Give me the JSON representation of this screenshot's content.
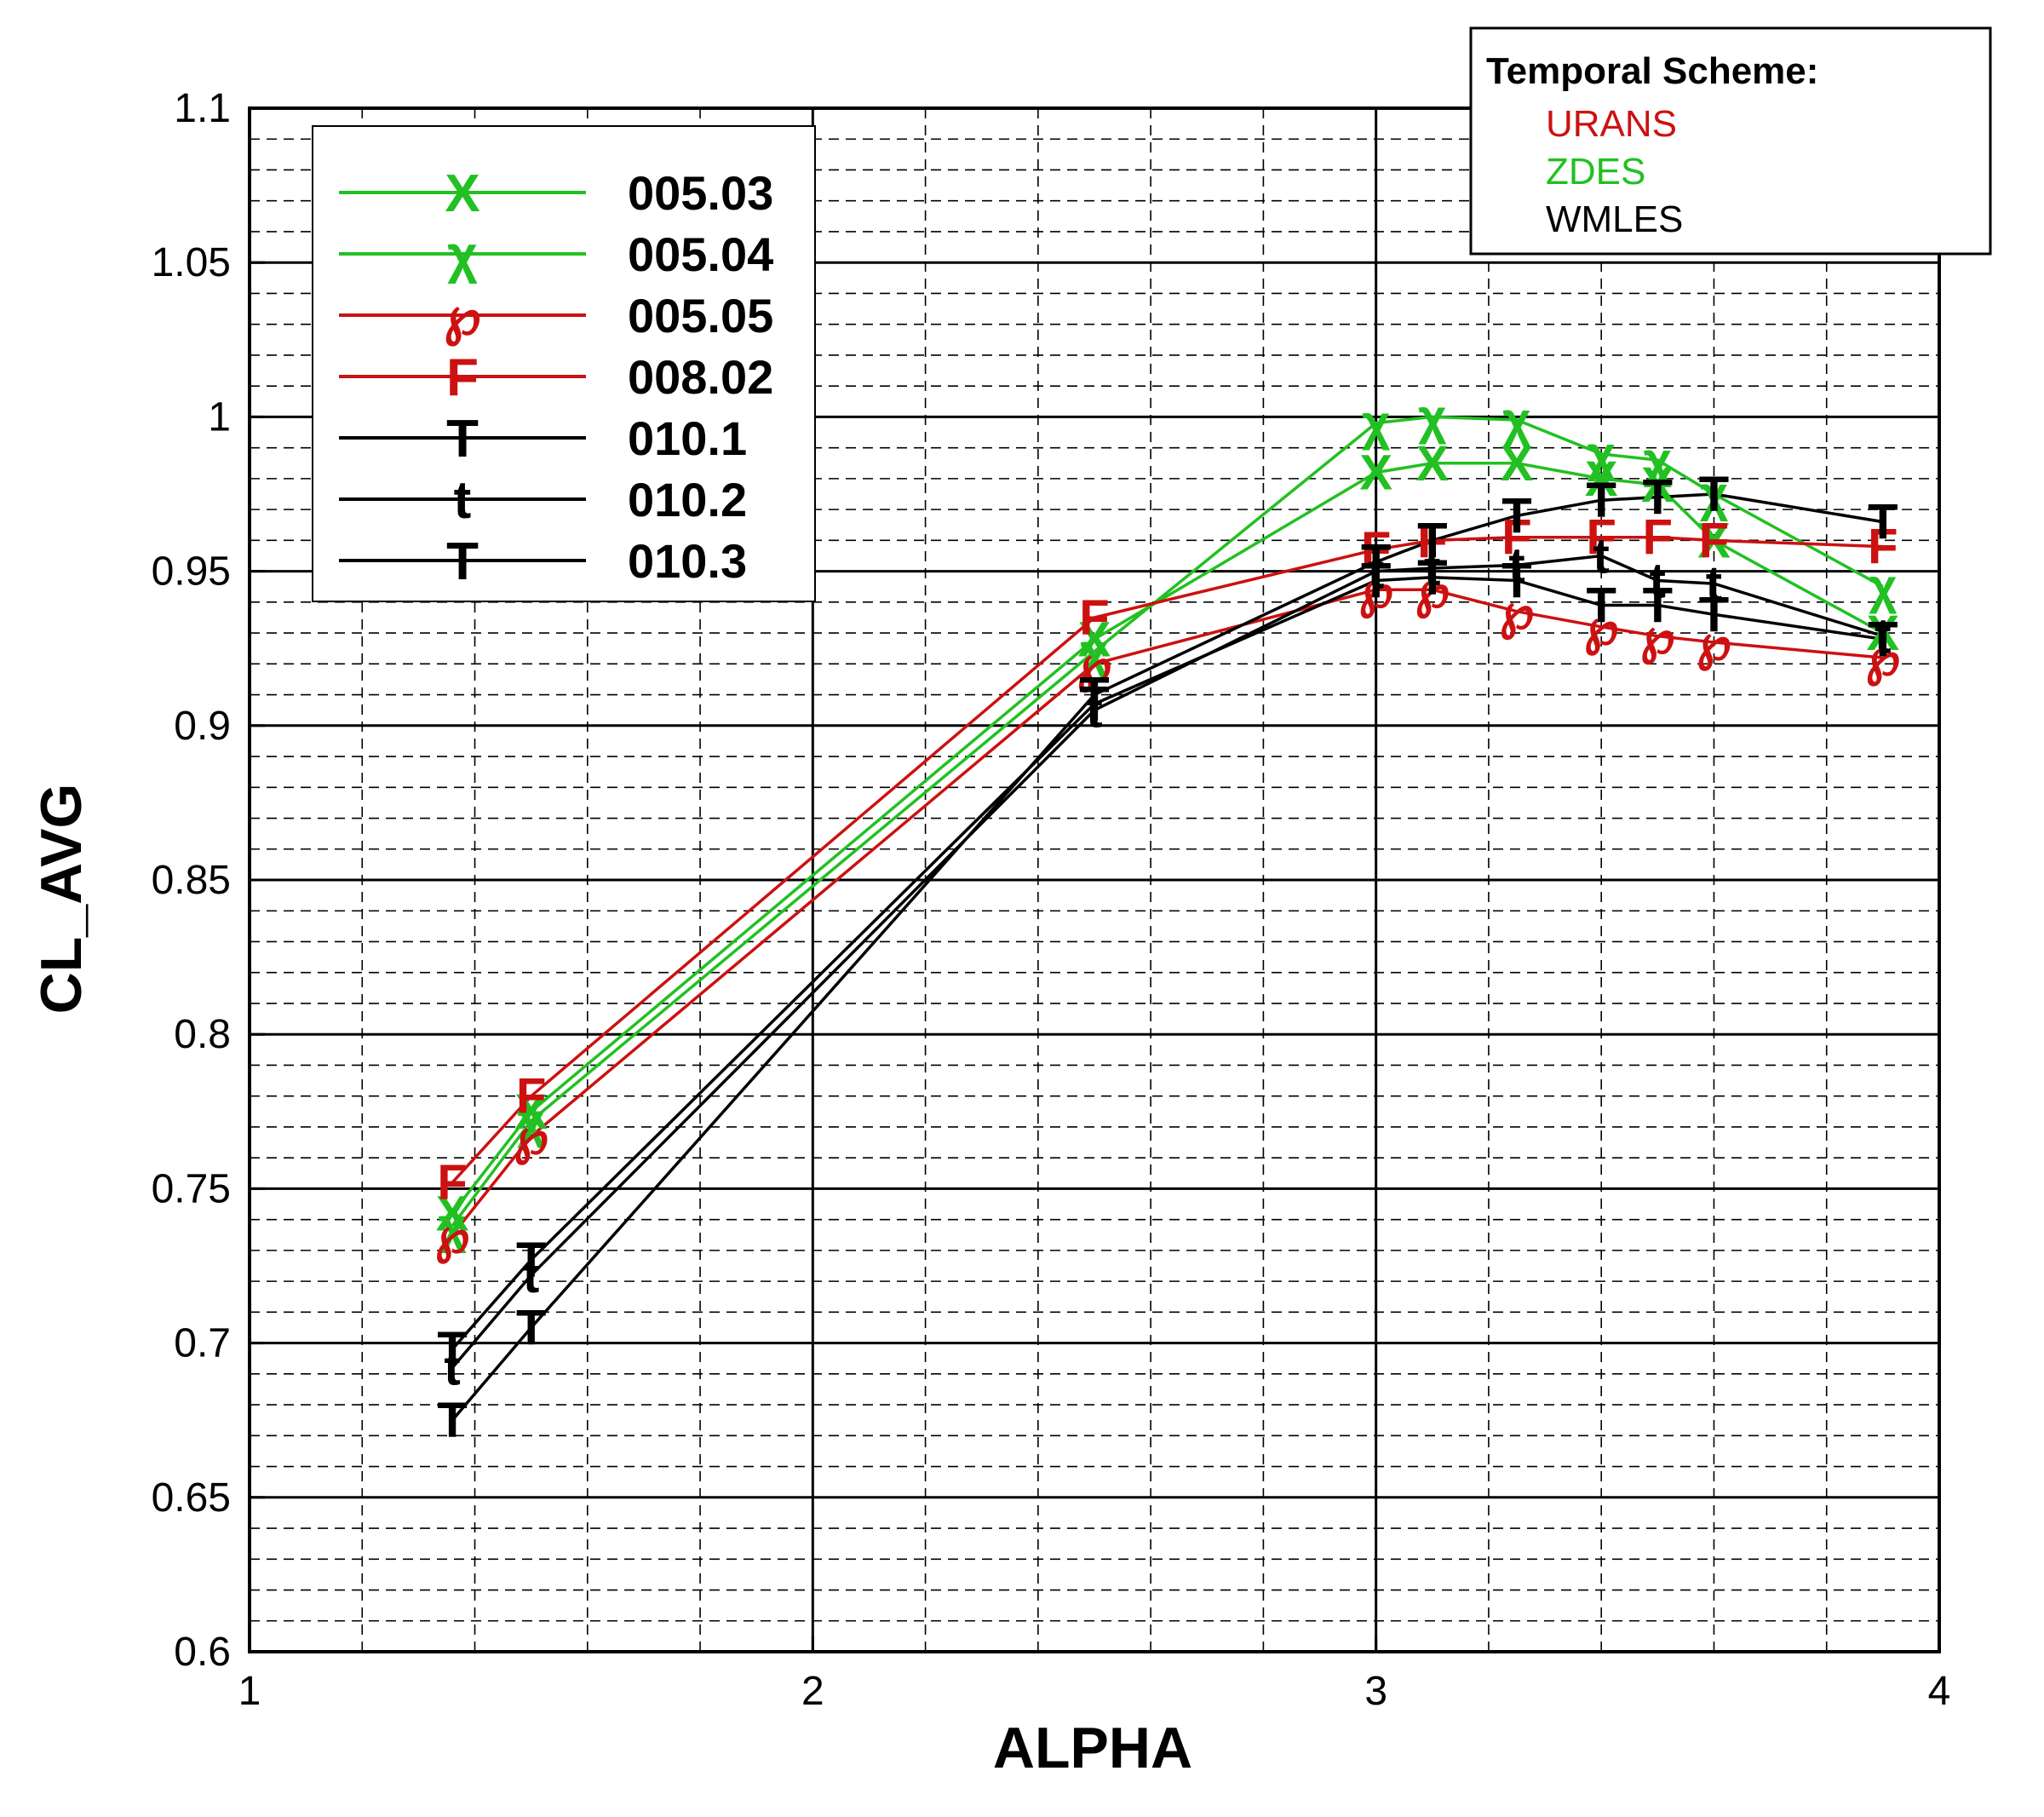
{
  "chart_data": {
    "type": "line",
    "xlabel": "ALPHA",
    "ylabel": "CL_AVG",
    "xlim": [
      1,
      4
    ],
    "ylim": [
      0.6,
      1.1
    ],
    "xticks": [
      "1",
      "2",
      "3",
      "4"
    ],
    "yticks": [
      "0.6",
      "0.65",
      "0.7",
      "0.75",
      "0.8",
      "0.85",
      "0.9",
      "0.95",
      "1",
      "1.05",
      "1.1"
    ],
    "grid": true,
    "legend_position": "top-left",
    "series": [
      {
        "name": "005.03",
        "marker": "X",
        "color": "#22c022",
        "x": [
          1.36,
          1.5,
          2.5,
          3.0,
          3.1,
          3.25,
          3.4,
          3.5,
          3.6,
          3.9
        ],
        "y": [
          0.742,
          0.775,
          0.928,
          0.982,
          0.985,
          0.985,
          0.98,
          0.978,
          0.96,
          0.93
        ]
      },
      {
        "name": "005.04",
        "marker": "χ",
        "color": "#22c022",
        "x": [
          1.36,
          1.5,
          2.5,
          3.0,
          3.1,
          3.25,
          3.4,
          3.5,
          3.6,
          3.9
        ],
        "y": [
          0.738,
          0.772,
          0.924,
          0.998,
          1.0,
          0.999,
          0.988,
          0.986,
          0.975,
          0.945
        ]
      },
      {
        "name": "005.05",
        "marker": "℘",
        "color": "#cc1111",
        "x": [
          1.36,
          1.5,
          2.5,
          3.0,
          3.1,
          3.25,
          3.4,
          3.5,
          3.6,
          3.9
        ],
        "y": [
          0.735,
          0.767,
          0.92,
          0.944,
          0.944,
          0.937,
          0.932,
          0.929,
          0.927,
          0.922
        ]
      },
      {
        "name": "008.02",
        "marker": "F",
        "color": "#cc1111",
        "x": [
          1.36,
          1.5,
          2.5,
          3.0,
          3.1,
          3.25,
          3.4,
          3.5,
          3.6,
          3.9
        ],
        "y": [
          0.752,
          0.78,
          0.935,
          0.957,
          0.96,
          0.961,
          0.961,
          0.961,
          0.96,
          0.958
        ]
      },
      {
        "name": "010.1",
        "marker": "T",
        "color": "#000000",
        "x": [
          1.36,
          1.5,
          2.5,
          3.0,
          3.1,
          3.25,
          3.4,
          3.5,
          3.6,
          3.9
        ],
        "y": [
          0.675,
          0.705,
          0.91,
          0.953,
          0.96,
          0.968,
          0.973,
          0.974,
          0.975,
          0.966
        ]
      },
      {
        "name": "010.2",
        "marker": "t",
        "color": "#000000",
        "x": [
          1.36,
          1.5,
          2.5,
          3.0,
          3.1,
          3.25,
          3.4,
          3.5,
          3.6,
          3.9
        ],
        "y": [
          0.692,
          0.722,
          0.905,
          0.95,
          0.951,
          0.952,
          0.955,
          0.947,
          0.946,
          0.929
        ]
      },
      {
        "name": "010.3",
        "marker": "T",
        "color": "#000000",
        "x": [
          1.36,
          1.5,
          2.5,
          3.0,
          3.1,
          3.25,
          3.4,
          3.5,
          3.6,
          3.9
        ],
        "y": [
          0.698,
          0.727,
          0.907,
          0.947,
          0.948,
          0.947,
          0.939,
          0.939,
          0.936,
          0.928
        ]
      }
    ]
  },
  "scheme_legend": {
    "title": "Temporal Scheme:",
    "items": [
      {
        "label": "URANS",
        "color": "#cc1111"
      },
      {
        "label": "ZDES",
        "color": "#22c022"
      },
      {
        "label": "WMLES",
        "color": "#000000"
      }
    ]
  }
}
